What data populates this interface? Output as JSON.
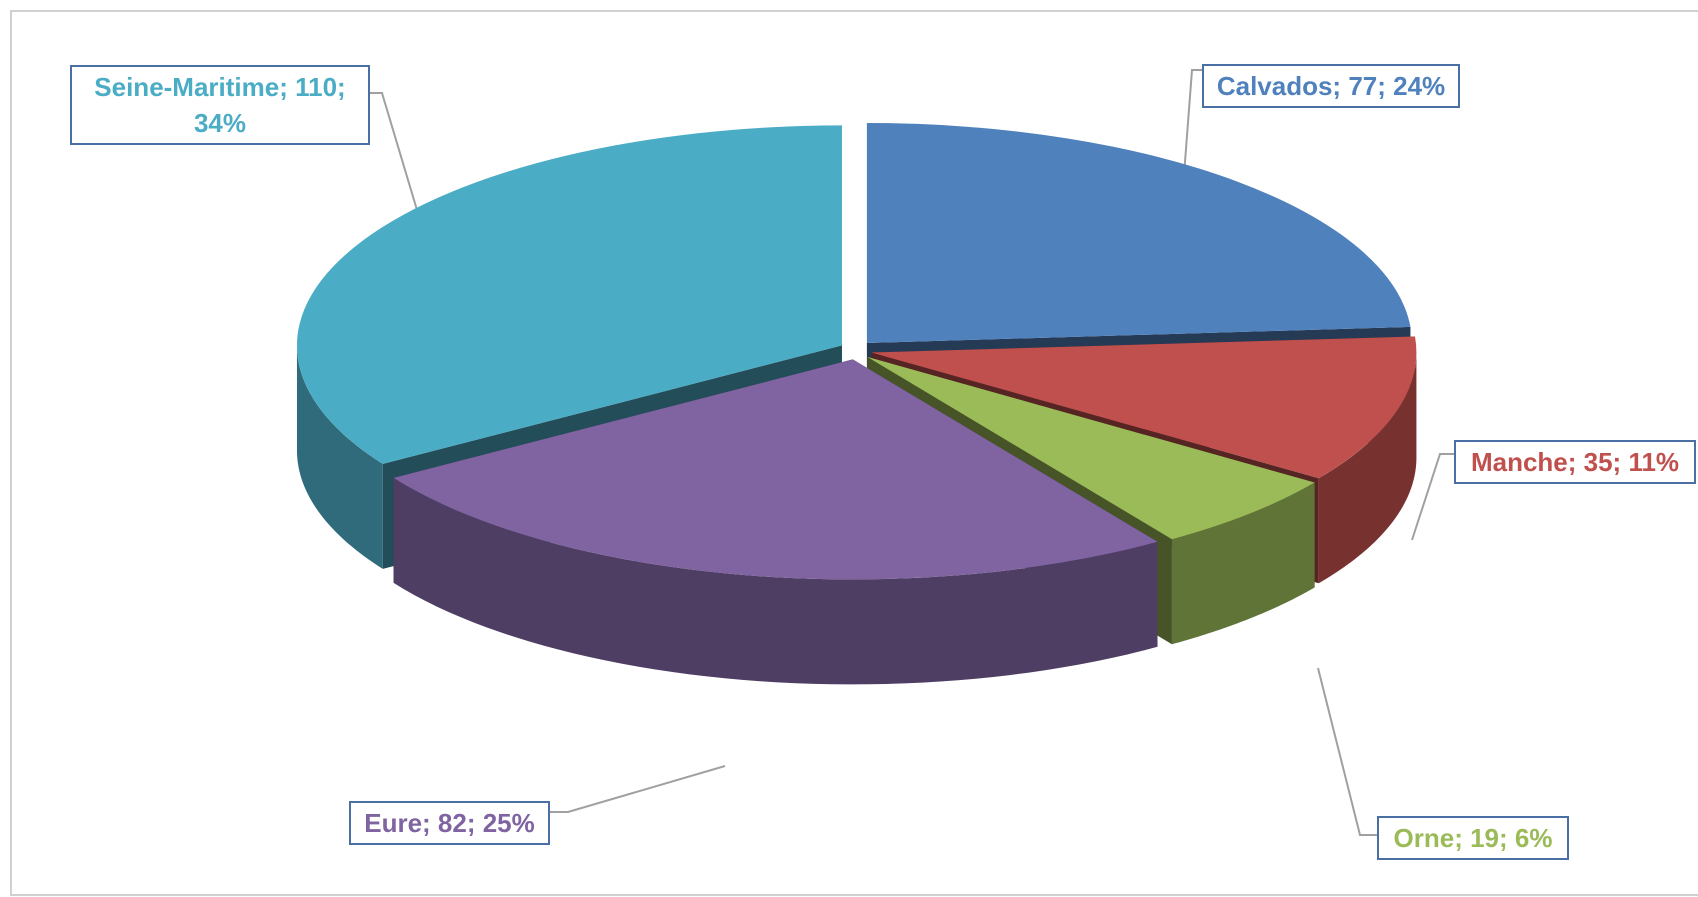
{
  "chart_data": {
    "type": "pie",
    "categories": [
      "Calvados",
      "Manche",
      "Orne",
      "Eure",
      "Seine-Maritime"
    ],
    "values": [
      77,
      35,
      19,
      82,
      110
    ],
    "value_labels": [
      "Calvados; 77; 24%",
      "Manche; 35; 11%",
      "Orne; 19; 6%",
      "Eure; 82; 25%",
      "Seine-Maritime; 110; 34%"
    ],
    "colors": [
      "#4f81bd",
      "#c0504d",
      "#9bbb59",
      "#8064a2",
      "#4bacc6"
    ]
  }
}
